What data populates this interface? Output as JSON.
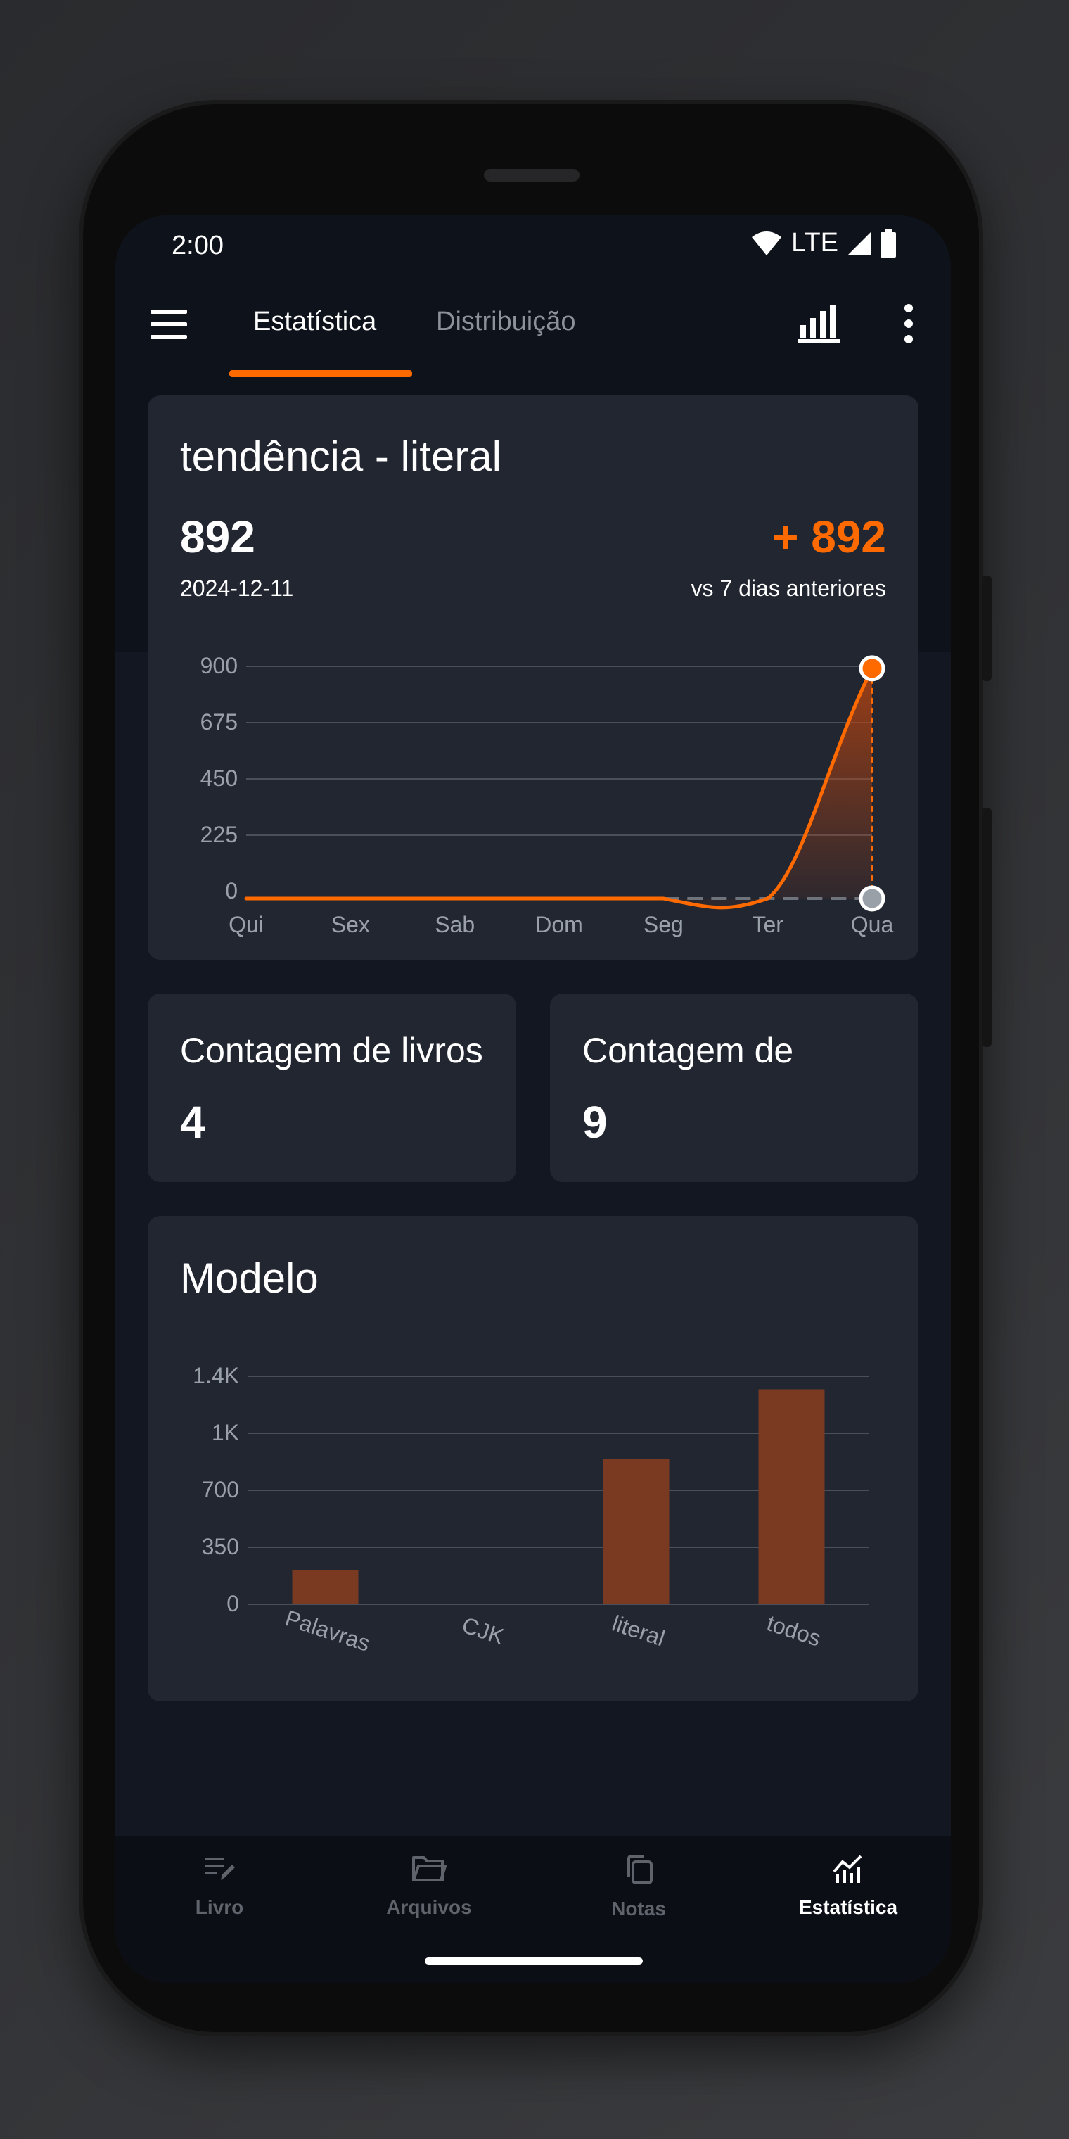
{
  "status_bar": {
    "time": "2:00",
    "network": "LTE"
  },
  "app_bar": {
    "tabs": [
      {
        "label": "Estatística",
        "active": true
      },
      {
        "label": "Distribuição",
        "active": false
      }
    ],
    "icons": [
      "menu-icon",
      "bar-chart-icon",
      "more-vert-icon"
    ]
  },
  "trend_card": {
    "title": "tendência - literal",
    "value": "892",
    "date": "2024-12-11",
    "delta": "+ 892",
    "delta_caption": "vs 7 dias anteriores"
  },
  "stats": [
    {
      "label": "Contagem de livros",
      "value": "4"
    },
    {
      "label": "Contagem de",
      "value": "9"
    }
  ],
  "model_card": {
    "title": "Modelo"
  },
  "chart_data": [
    {
      "type": "line",
      "categories": [
        "Qui",
        "Sex",
        "Sab",
        "Dom",
        "Seg",
        "Ter",
        "Qua"
      ],
      "series": [
        {
          "values": [
            0,
            0,
            0,
            0,
            0,
            0,
            892
          ]
        }
      ],
      "y_ticks": [
        "0",
        "225",
        "450",
        "675",
        "900"
      ],
      "ylim": [
        0,
        900
      ],
      "grid": true,
      "accent": "#ff6a00"
    },
    {
      "type": "bar",
      "categories": [
        "Palavras",
        "CJK",
        "literal",
        "todos"
      ],
      "values": [
        210,
        0,
        892,
        1320
      ],
      "y_ticks": [
        "0",
        "350",
        "700",
        "1K",
        "1.4K"
      ],
      "ylim": [
        0,
        1400
      ],
      "grid": true,
      "bar_color": "#7a3a22"
    }
  ],
  "bottom_nav": [
    {
      "label": "Livro",
      "icon": "edit-note-icon",
      "active": false
    },
    {
      "label": "Arquivos",
      "icon": "folder-icon",
      "active": false
    },
    {
      "label": "Notas",
      "icon": "copy-icon",
      "active": false
    },
    {
      "label": "Estatística",
      "icon": "trending-chart-icon",
      "active": true
    }
  ],
  "colors": {
    "accent": "#ff6a00",
    "card": "#222631",
    "background": "#131722"
  }
}
